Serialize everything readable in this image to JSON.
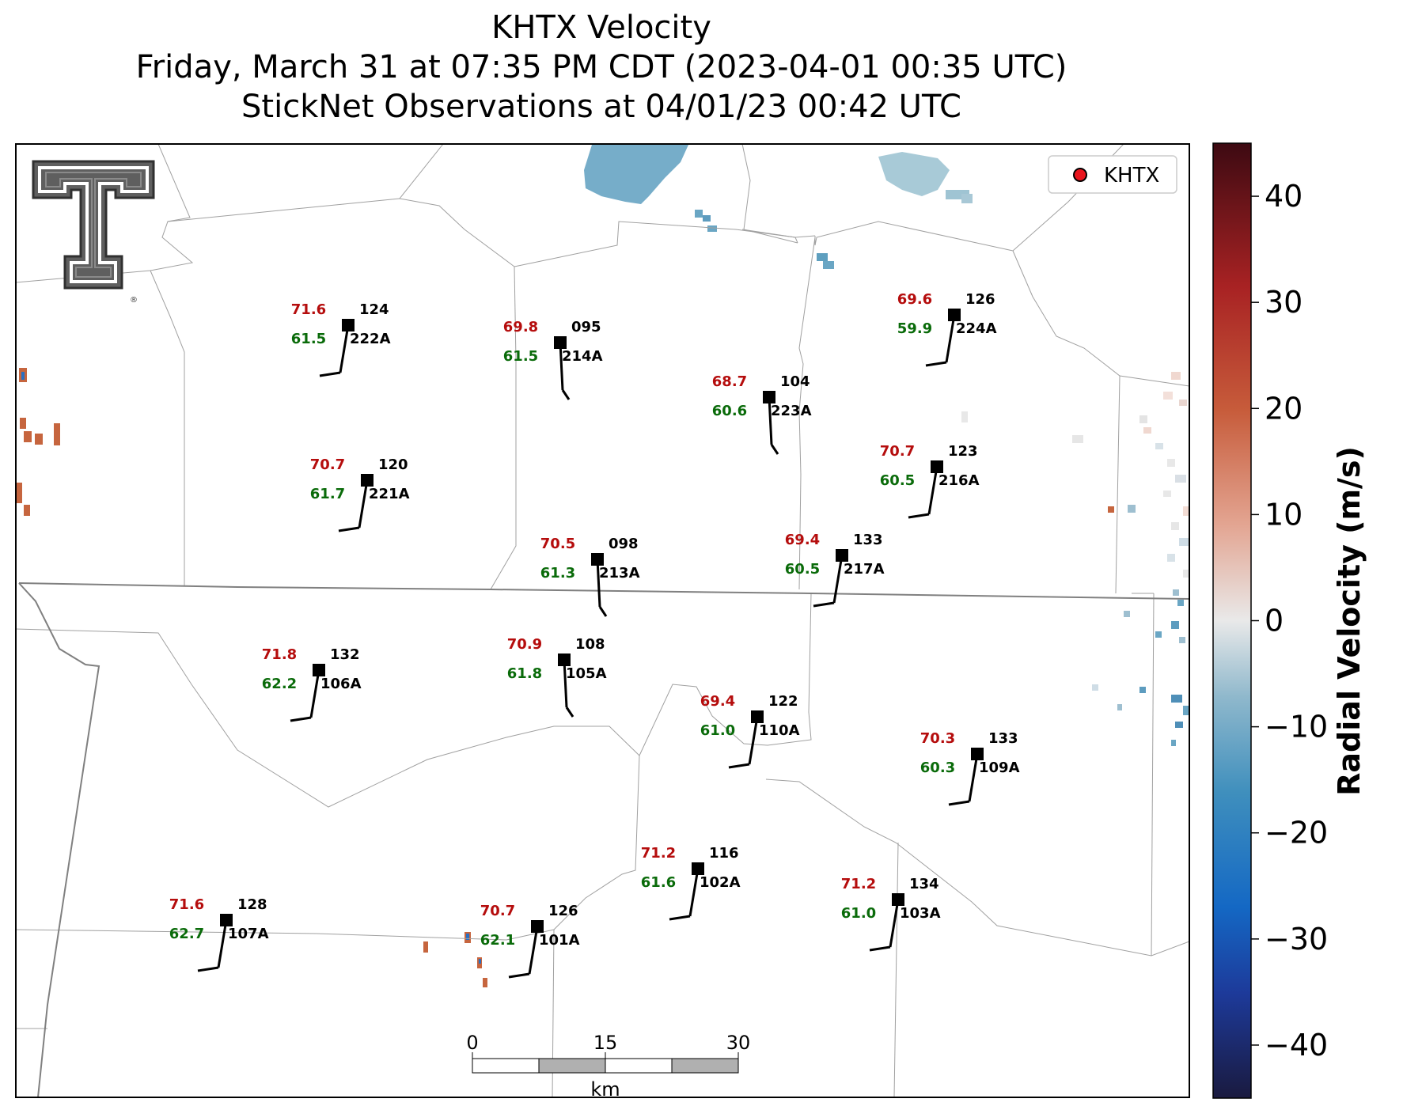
{
  "title": {
    "line1": "KHTX Velocity",
    "line2": "Friday, March 31 at 07:35 PM CDT (2023-04-01 00:35 UTC)",
    "line3": "StickNet Observations at 04/01/23 00:42 UTC"
  },
  "legend": {
    "label": "KHTX",
    "marker_color": "#e8141c"
  },
  "logo": {
    "name": "texas-tech-double-t-logo",
    "registered": "®"
  },
  "colorbar": {
    "label": "Radial Velocity (m/s)",
    "ticks": [
      "40",
      "30",
      "20",
      "10",
      "0",
      "−10",
      "−20",
      "−30",
      "−40"
    ],
    "range": [
      -45,
      45
    ],
    "stops": [
      "#1a1a3f",
      "#1d3a9a",
      "#1468c4",
      "#3f8fbd",
      "#8fb8cc",
      "#e9e9e9",
      "#e3a592",
      "#c75c3b",
      "#a82223",
      "#3d0a12"
    ]
  },
  "scalebar": {
    "ticks": [
      "0",
      "15",
      "30"
    ],
    "unit": "km"
  },
  "colors": {
    "temperature": "#b50d0d",
    "dewpoint": "#0a6b0a",
    "station": "#000000",
    "border": "#a0a0a0",
    "state_line": "#808080"
  },
  "stations": [
    {
      "id": "222A",
      "temp": "71.6",
      "dew": "61.5",
      "dir": "124"
    },
    {
      "id": "214A",
      "temp": "69.8",
      "dew": "61.5",
      "dir": "095"
    },
    {
      "id": "223A",
      "temp": "68.7",
      "dew": "60.6",
      "dir": "104"
    },
    {
      "id": "224A",
      "temp": "69.6",
      "dew": "59.9",
      "dir": "126"
    },
    {
      "id": "221A",
      "temp": "70.7",
      "dew": "61.7",
      "dir": "120"
    },
    {
      "id": "216A",
      "temp": "70.7",
      "dew": "60.5",
      "dir": "123"
    },
    {
      "id": "213A",
      "temp": "70.5",
      "dew": "61.3",
      "dir": "098"
    },
    {
      "id": "217A",
      "temp": "69.4",
      "dew": "60.5",
      "dir": "133"
    },
    {
      "id": "106A",
      "temp": "71.8",
      "dew": "62.2",
      "dir": "132"
    },
    {
      "id": "105A",
      "temp": "70.9",
      "dew": "61.8",
      "dir": "108"
    },
    {
      "id": "110A",
      "temp": "69.4",
      "dew": "61.0",
      "dir": "122"
    },
    {
      "id": "109A",
      "temp": "70.3",
      "dew": "60.3",
      "dir": "133"
    },
    {
      "id": "102A",
      "temp": "71.2",
      "dew": "61.6",
      "dir": "116"
    },
    {
      "id": "103A",
      "temp": "71.2",
      "dew": "61.0",
      "dir": "134"
    },
    {
      "id": "107A",
      "temp": "71.6",
      "dew": "62.7",
      "dir": "128"
    },
    {
      "id": "101A",
      "temp": "70.7",
      "dew": "62.1",
      "dir": "126"
    }
  ]
}
